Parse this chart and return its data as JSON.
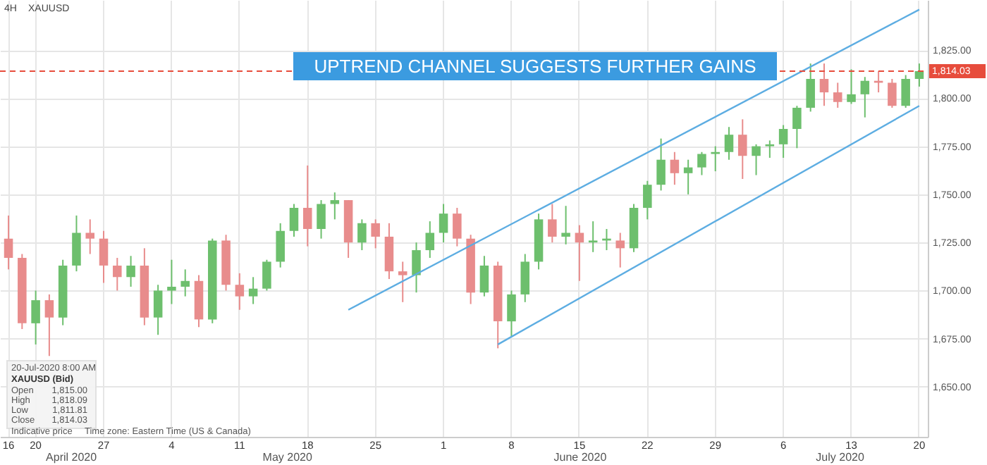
{
  "chart_data": {
    "type": "candlestick",
    "title": "UPTREND CHANNEL SUGGESTS  FURTHER GAINS",
    "categories": [
      "16",
      null,
      "20",
      null,
      null,
      null,
      null,
      "27",
      null,
      null,
      null,
      null,
      "4",
      null,
      null,
      null,
      null,
      "11",
      null,
      null,
      null,
      null,
      "18",
      null,
      null,
      null,
      null,
      "25",
      null,
      null,
      null,
      null,
      "1",
      null,
      null,
      null,
      null,
      "8",
      null,
      null,
      null,
      null,
      "15",
      null,
      null,
      null,
      null,
      "22",
      null,
      null,
      null,
      null,
      "29",
      null,
      null,
      null,
      null,
      "6",
      null,
      null,
      null,
      null,
      "13",
      null,
      null,
      null,
      null,
      "20"
    ],
    "ohlc": [
      [
        1727,
        1739,
        1711,
        1717
      ],
      [
        1717,
        1719,
        1680,
        1683
      ],
      [
        1683,
        1700,
        1672,
        1695
      ],
      [
        1695,
        1698,
        1666,
        1686
      ],
      [
        1686,
        1716,
        1682,
        1713
      ],
      [
        1713,
        1739,
        1710,
        1730
      ],
      [
        1730,
        1737,
        1719,
        1727
      ],
      [
        1727,
        1731,
        1704,
        1713
      ],
      [
        1713,
        1717,
        1700,
        1707
      ],
      [
        1707,
        1718,
        1702,
        1713
      ],
      [
        1713,
        1722,
        1682,
        1686
      ],
      [
        1686,
        1703,
        1677,
        1700
      ],
      [
        1700,
        1716,
        1693,
        1702
      ],
      [
        1702,
        1711,
        1697,
        1705
      ],
      [
        1705,
        1708,
        1681,
        1685
      ],
      [
        1685,
        1727,
        1683,
        1726
      ],
      [
        1726,
        1729,
        1700,
        1703
      ],
      [
        1703,
        1709,
        1690,
        1697
      ],
      [
        1697,
        1707,
        1693,
        1701
      ],
      [
        1701,
        1716,
        1700,
        1715
      ],
      [
        1715,
        1735,
        1712,
        1731
      ],
      [
        1731,
        1745,
        1728,
        1743
      ],
      [
        1743,
        1765,
        1723,
        1732
      ],
      [
        1732,
        1747,
        1727,
        1745
      ],
      [
        1745,
        1751,
        1737,
        1747
      ],
      [
        1747,
        1747,
        1717,
        1725
      ],
      [
        1725,
        1737,
        1721,
        1735
      ],
      [
        1735,
        1737,
        1722,
        1728
      ],
      [
        1728,
        1735,
        1706,
        1710
      ],
      [
        1710,
        1715,
        1694,
        1708
      ],
      [
        1708,
        1725,
        1699,
        1721
      ],
      [
        1721,
        1736,
        1717,
        1730
      ],
      [
        1730,
        1745,
        1725,
        1740
      ],
      [
        1740,
        1743,
        1723,
        1727
      ],
      [
        1727,
        1729,
        1693,
        1699
      ],
      [
        1699,
        1718,
        1697,
        1713
      ],
      [
        1713,
        1715,
        1670,
        1684
      ],
      [
        1684,
        1700,
        1676,
        1698
      ],
      [
        1698,
        1719,
        1694,
        1715
      ],
      [
        1715,
        1740,
        1711,
        1737
      ],
      [
        1737,
        1745,
        1725,
        1728
      ],
      [
        1728,
        1744,
        1724,
        1730
      ],
      [
        1730,
        1734,
        1705,
        1725
      ],
      [
        1725,
        1736,
        1720,
        1726
      ],
      [
        1726,
        1732,
        1721,
        1727
      ],
      [
        1726,
        1730,
        1712,
        1722
      ],
      [
        1722,
        1745,
        1720,
        1743
      ],
      [
        1743,
        1757,
        1737,
        1755
      ],
      [
        1755,
        1779,
        1752,
        1768
      ],
      [
        1768,
        1772,
        1755,
        1761
      ],
      [
        1761,
        1768,
        1750,
        1764
      ],
      [
        1764,
        1772,
        1760,
        1771
      ],
      [
        1771,
        1775,
        1762,
        1772
      ],
      [
        1772,
        1785,
        1768,
        1781
      ],
      [
        1781,
        1789,
        1758,
        1770
      ],
      [
        1770,
        1776,
        1760,
        1775
      ],
      [
        1775,
        1778,
        1769,
        1776
      ],
      [
        1776,
        1786,
        1769,
        1784
      ],
      [
        1784,
        1796,
        1774,
        1795
      ],
      [
        1795,
        1818,
        1793,
        1810
      ],
      [
        1810,
        1818,
        1796,
        1803
      ],
      [
        1803,
        1808,
        1795,
        1798
      ],
      [
        1798,
        1815,
        1797,
        1802
      ],
      [
        1802,
        1811,
        1790,
        1809
      ],
      [
        1809,
        1814,
        1803,
        1808
      ],
      [
        1808,
        1810,
        1795,
        1796
      ],
      [
        1796,
        1812,
        1795,
        1810
      ],
      [
        1810,
        1818,
        1806,
        1814.03
      ]
    ],
    "series": [
      {
        "type": "line",
        "color": "#5dade2",
        "values": [
          null,
          null,
          null,
          null,
          null,
          null,
          null,
          null,
          null,
          null,
          null,
          null,
          null,
          null,
          null,
          null,
          null,
          null,
          null,
          null,
          null,
          null,
          null,
          null,
          null,
          1690,
          null,
          null,
          null,
          null,
          null,
          null,
          null,
          null,
          null,
          null,
          null,
          null,
          null,
          null,
          null,
          null,
          null,
          null,
          null,
          null,
          null,
          null,
          null,
          null,
          null,
          null,
          null,
          null,
          null,
          null,
          null,
          null,
          null,
          null,
          null,
          null,
          null,
          null,
          null,
          null,
          null,
          1846
        ]
      },
      {
        "type": "line",
        "color": "#5dade2",
        "values": [
          null,
          null,
          null,
          null,
          null,
          null,
          null,
          null,
          null,
          null,
          null,
          null,
          null,
          null,
          null,
          null,
          null,
          null,
          null,
          null,
          null,
          null,
          null,
          null,
          null,
          null,
          null,
          null,
          null,
          null,
          null,
          null,
          null,
          null,
          null,
          null,
          1672,
          null,
          null,
          null,
          null,
          null,
          null,
          null,
          null,
          null,
          null,
          null,
          null,
          null,
          null,
          null,
          null,
          null,
          null,
          null,
          null,
          null,
          null,
          null,
          null,
          null,
          null,
          null,
          null,
          null,
          null,
          1796
        ]
      }
    ],
    "ylim": [
      1624,
      1851
    ],
    "yticks": [
      {
        "value": 1650,
        "label": "1,650.00"
      },
      {
        "value": 1675,
        "label": "1,675.00"
      },
      {
        "value": 1700,
        "label": "1,700.00"
      },
      {
        "value": 1725,
        "label": "1,725.00"
      },
      {
        "value": 1750,
        "label": "1,750.00"
      },
      {
        "value": 1775,
        "label": "1,775.00"
      },
      {
        "value": 1800,
        "label": "1,800.00"
      },
      {
        "value": 1825,
        "label": "1,825.00"
      }
    ],
    "ref_lines": [
      {
        "axis": "y",
        "value": 1814.03,
        "label": "1,814.03",
        "color": "#e74c3c",
        "line_style": "dashed"
      }
    ],
    "grid": true,
    "annotations": [
      "4H",
      "XAUUSD",
      "20-Jul-2020 8:00 AM",
      "XAUUSD (Bid)",
      "Open",
      "1,815.00",
      "High",
      "1,818.09",
      "Low",
      "1,811.81",
      "Close",
      "1,814.03",
      "Indicative price",
      "Time zone: Eastern Time (US & Canada)",
      "April 2020",
      "May 2020",
      "June 2020",
      "July 2020"
    ]
  }
}
